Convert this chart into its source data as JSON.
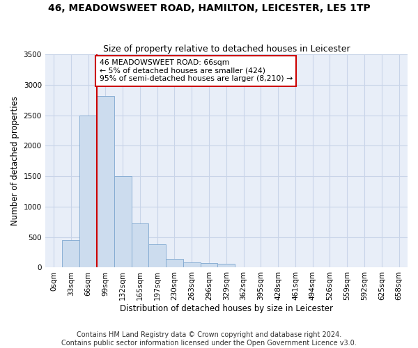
{
  "title": "46, MEADOWSWEET ROAD, HAMILTON, LEICESTER, LE5 1TP",
  "subtitle": "Size of property relative to detached houses in Leicester",
  "xlabel": "Distribution of detached houses by size in Leicester",
  "ylabel": "Number of detached properties",
  "footer_line1": "Contains HM Land Registry data © Crown copyright and database right 2024.",
  "footer_line2": "Contains public sector information licensed under the Open Government Licence v3.0.",
  "categories": [
    "0sqm",
    "33sqm",
    "66sqm",
    "99sqm",
    "132sqm",
    "165sqm",
    "197sqm",
    "230sqm",
    "263sqm",
    "296sqm",
    "329sqm",
    "362sqm",
    "395sqm",
    "428sqm",
    "461sqm",
    "494sqm",
    "526sqm",
    "559sqm",
    "592sqm",
    "625sqm",
    "658sqm"
  ],
  "values": [
    10,
    450,
    2500,
    2820,
    1500,
    730,
    380,
    140,
    90,
    75,
    60,
    10,
    8,
    5,
    0,
    0,
    0,
    0,
    0,
    0,
    0
  ],
  "bar_color": "#ccdcee",
  "bar_edge_color": "#7fa8d0",
  "grid_color": "#c8d4e8",
  "background_color": "#e8eef8",
  "property_line_color": "#cc0000",
  "annotation_text": "46 MEADOWSWEET ROAD: 66sqm\n← 5% of detached houses are smaller (424)\n95% of semi-detached houses are larger (8,210) →",
  "annotation_box_color": "#cc0000",
  "ylim": [
    0,
    3500
  ],
  "yticks": [
    0,
    500,
    1000,
    1500,
    2000,
    2500,
    3000,
    3500
  ],
  "title_fontsize": 10,
  "subtitle_fontsize": 9,
  "axis_label_fontsize": 8.5,
  "tick_fontsize": 7.5,
  "annotation_fontsize": 7.8,
  "footer_fontsize": 7
}
